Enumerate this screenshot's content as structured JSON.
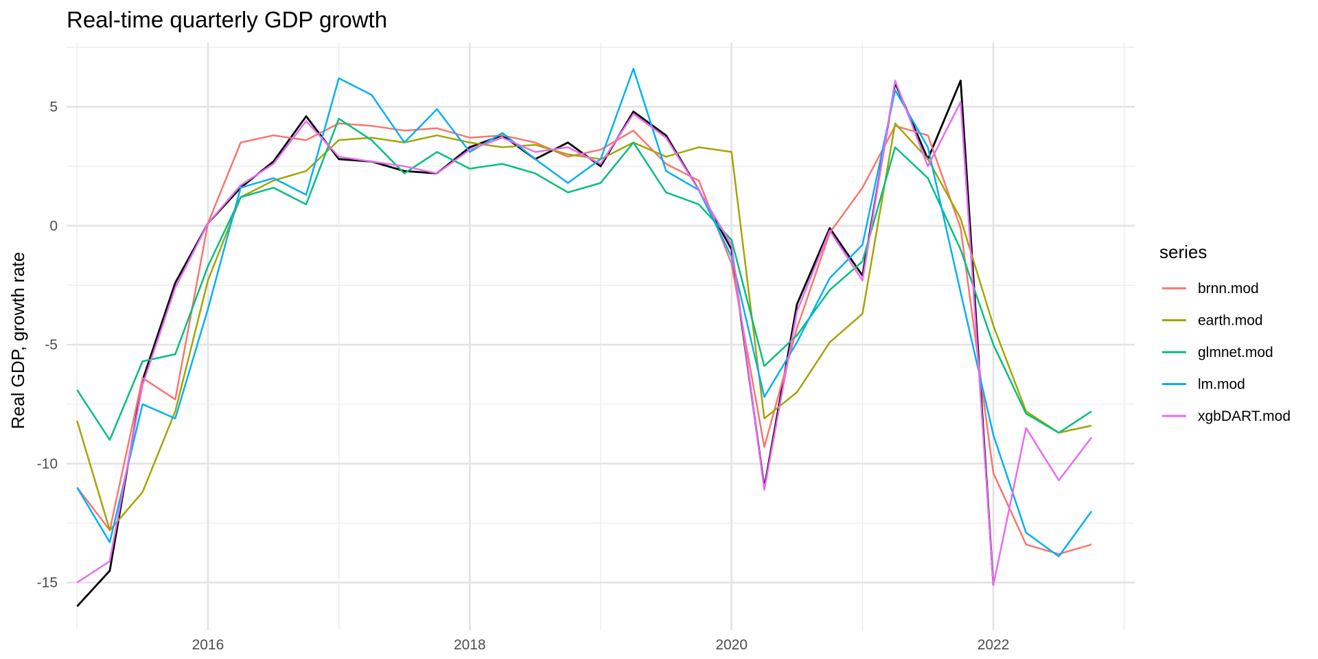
{
  "chart_data": {
    "type": "line",
    "title": "Real-time quarterly GDP growth",
    "xlabel": "",
    "ylabel": "Real GDP, growth rate",
    "x": [
      "2015Q1",
      "2015Q2",
      "2015Q3",
      "2015Q4",
      "2016Q1",
      "2016Q2",
      "2016Q3",
      "2016Q4",
      "2017Q1",
      "2017Q2",
      "2017Q3",
      "2017Q4",
      "2018Q1",
      "2018Q2",
      "2018Q3",
      "2018Q4",
      "2019Q1",
      "2019Q2",
      "2019Q3",
      "2019Q4",
      "2020Q1",
      "2020Q2",
      "2020Q3",
      "2020Q4",
      "2021Q1",
      "2021Q2",
      "2021Q3",
      "2021Q4",
      "2022Q1",
      "2022Q2",
      "2022Q3",
      "2022Q4"
    ],
    "x_numeric": [
      2015.0,
      2015.25,
      2015.5,
      2015.75,
      2016.0,
      2016.25,
      2016.5,
      2016.75,
      2017.0,
      2017.25,
      2017.5,
      2017.75,
      2018.0,
      2018.25,
      2018.5,
      2018.75,
      2019.0,
      2019.25,
      2019.5,
      2019.75,
      2020.0,
      2020.25,
      2020.5,
      2020.75,
      2021.0,
      2021.25,
      2021.5,
      2021.75,
      2022.0,
      2022.25,
      2022.5,
      2022.75
    ],
    "xlim": [
      2014.92,
      2023.08
    ],
    "ylim": [
      -17.0,
      7.7
    ],
    "x_ticks": [
      2016,
      2018,
      2020,
      2022
    ],
    "x_tick_labels": [
      "2016",
      "2018",
      "2020",
      "2022"
    ],
    "y_ticks": [
      5,
      0,
      -5,
      -10,
      -15
    ],
    "y_tick_labels": [
      "5",
      "0",
      "-5",
      "-10",
      "-15"
    ],
    "grid": true,
    "legend": {
      "title": "series",
      "position": "right"
    },
    "series": [
      {
        "name": "",
        "color": "#000000",
        "values": [
          -16.0,
          -14.5,
          -6.5,
          -2.4,
          0.1,
          1.6,
          2.7,
          4.6,
          2.8,
          2.7,
          2.3,
          2.2,
          3.3,
          3.8,
          2.8,
          3.5,
          2.5,
          4.8,
          3.8,
          1.5,
          -1.0,
          -11.0,
          -3.3,
          -0.1,
          -2.1,
          6.0,
          2.8,
          6.1,
          -15.1,
          null,
          null,
          null
        ]
      },
      {
        "name": "brnn.mod",
        "color": "#F8766D",
        "values": [
          -11.0,
          -12.8,
          -6.4,
          -7.3,
          0.1,
          3.5,
          3.8,
          3.6,
          4.3,
          4.2,
          4.0,
          4.1,
          3.7,
          3.8,
          3.5,
          2.9,
          3.2,
          4.0,
          2.6,
          1.9,
          -1.6,
          -9.3,
          -4.3,
          -0.3,
          1.6,
          4.2,
          3.8,
          -0.1,
          -10.4,
          -13.4,
          -13.8,
          -13.4
        ]
      },
      {
        "name": "earth.mod",
        "color": "#A3A500",
        "values": [
          -8.2,
          -12.8,
          -11.2,
          -7.8,
          -2.3,
          1.2,
          1.9,
          2.3,
          3.6,
          3.7,
          3.5,
          3.8,
          3.5,
          3.3,
          3.4,
          3.0,
          2.8,
          3.5,
          2.9,
          3.3,
          3.1,
          -8.1,
          -7.0,
          -4.9,
          -3.7,
          4.3,
          2.8,
          0.3,
          -4.2,
          -7.8,
          -8.7,
          -8.4
        ]
      },
      {
        "name": "glmnet.mod",
        "color": "#00BF7D",
        "values": [
          -6.9,
          -9.0,
          -5.7,
          -5.4,
          -1.7,
          1.2,
          1.6,
          0.9,
          4.5,
          3.6,
          2.2,
          3.1,
          2.4,
          2.6,
          2.2,
          1.4,
          1.8,
          3.5,
          1.4,
          0.9,
          -0.6,
          -5.9,
          -4.6,
          -2.7,
          -1.5,
          3.3,
          2.0,
          -1.0,
          -5.0,
          -7.9,
          -8.7,
          -7.8
        ]
      },
      {
        "name": "lm.mod",
        "color": "#00B0F6",
        "values": [
          -11.0,
          -13.3,
          -7.5,
          -8.1,
          -3.5,
          1.6,
          2.0,
          1.3,
          6.2,
          5.5,
          3.5,
          4.9,
          3.1,
          3.9,
          2.8,
          1.8,
          2.8,
          6.6,
          2.3,
          1.5,
          -1.3,
          -7.2,
          -4.9,
          -2.2,
          -0.8,
          5.7,
          3.3,
          -2.8,
          -8.8,
          -12.9,
          -13.9,
          -12.0
        ]
      },
      {
        "name": "xgbDART.mod",
        "color": "#E76BF3",
        "values": [
          -15.0,
          -14.1,
          -6.7,
          -2.6,
          0.1,
          1.7,
          2.6,
          4.4,
          2.9,
          2.7,
          2.5,
          2.2,
          3.2,
          3.7,
          3.1,
          3.3,
          2.6,
          4.7,
          3.7,
          1.5,
          -0.8,
          -11.1,
          -3.6,
          -0.2,
          -2.3,
          6.1,
          2.5,
          5.2,
          -15.1,
          -8.5,
          -10.7,
          -8.9
        ]
      }
    ]
  }
}
